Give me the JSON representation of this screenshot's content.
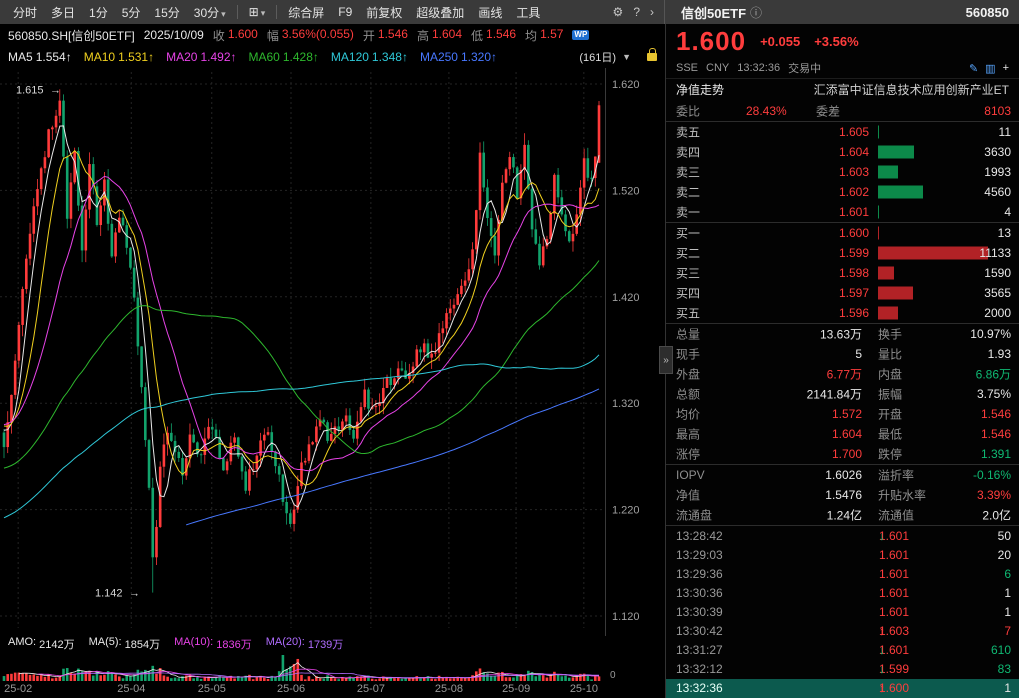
{
  "palette": {
    "red": "#ff3d3d",
    "green": "#0fb973",
    "white": "#e8e8e8"
  },
  "toolbar": {
    "tabs": [
      "分时",
      "多日",
      "1分",
      "5分",
      "15分",
      "30分"
    ],
    "tab_dropdown": "▾",
    "chart_type_icon": "⊞",
    "menu": [
      "综合屏",
      "F9",
      "前复权",
      "超级叠加",
      "画线",
      "工具"
    ],
    "gear_icon": "⚙",
    "help_icon": "?",
    "more_icon": "›"
  },
  "quote_header": {
    "name": "信创50ETF",
    "info_icon": "ⓘ",
    "code": "560850"
  },
  "info_row": {
    "symbol": "560850.SH[信创50ETF]",
    "date": "2025/10/09",
    "fields": [
      {
        "label": "收",
        "value": "1.600",
        "color": "red"
      },
      {
        "label": "幅",
        "value": "3.56%(0.055)",
        "color": "red"
      },
      {
        "label": "开",
        "value": "1.546",
        "color": "red"
      },
      {
        "label": "高",
        "value": "1.604",
        "color": "red"
      },
      {
        "label": "低",
        "value": "1.546",
        "color": "red"
      },
      {
        "label": "均",
        "value": "1.57",
        "color": "red"
      }
    ],
    "badge": "WP"
  },
  "ma_row": {
    "items": [
      {
        "label": "MA5",
        "value": "1.554↑",
        "color": "#e8e8e8"
      },
      {
        "label": "MA10",
        "value": "1.531↑",
        "color": "#f0d01f"
      },
      {
        "label": "MA20",
        "value": "1.492↑",
        "color": "#e743e7"
      },
      {
        "label": "MA60",
        "value": "1.428↑",
        "color": "#2eb82e"
      },
      {
        "label": "MA120",
        "value": "1.348↑",
        "color": "#2fc8d8"
      },
      {
        "label": "MA250",
        "value": "1.320↑",
        "color": "#4878ff"
      }
    ],
    "period": "(161日)",
    "period_arrow": "▼"
  },
  "price_panel": {
    "last": "1.600",
    "change": "+0.055",
    "pct": "+3.56%",
    "exchange": "SSE",
    "currency": "CNY",
    "time": "13:32:36",
    "status": "交易中",
    "edit_icon": "✎",
    "kline_icon": "▥",
    "plus_icon": "+"
  },
  "fund_row": {
    "label": "净值走势",
    "name": "汇添富中证信息技术应用创新产业ET"
  },
  "weibi": {
    "label1": "委比",
    "value1": "28.43%",
    "label2": "委差",
    "value2": "8103"
  },
  "depth": {
    "max_size": 11133,
    "asks": [
      {
        "label": "卖五",
        "price": "1.605",
        "vol": "11",
        "size": 11
      },
      {
        "label": "卖四",
        "price": "1.604",
        "vol": "3630",
        "size": 3630
      },
      {
        "label": "卖三",
        "price": "1.603",
        "vol": "1993",
        "size": 1993
      },
      {
        "label": "卖二",
        "price": "1.602",
        "vol": "4560",
        "size": 4560
      },
      {
        "label": "卖一",
        "price": "1.601",
        "vol": "4",
        "size": 4
      }
    ],
    "bids": [
      {
        "label": "买一",
        "price": "1.600",
        "vol": "13",
        "size": 13
      },
      {
        "label": "买二",
        "price": "1.599",
        "vol": "11133",
        "size": 11133
      },
      {
        "label": "买三",
        "price": "1.598",
        "vol": "1590",
        "size": 1590
      },
      {
        "label": "买四",
        "price": "1.597",
        "vol": "3565",
        "size": 3565
      },
      {
        "label": "买五",
        "price": "1.596",
        "vol": "2000",
        "size": 2000
      }
    ],
    "ask_bar_color": "#0c8a4a",
    "bid_bar_color": "#b22226"
  },
  "stats": [
    {
      "l1": "总量",
      "v1": "13.63万",
      "c1": "white",
      "l2": "换手",
      "v2": "10.97%",
      "c2": "white"
    },
    {
      "l1": "现手",
      "v1": "5",
      "c1": "white",
      "l2": "量比",
      "v2": "1.93",
      "c2": "white"
    },
    {
      "l1": "外盘",
      "v1": "6.77万",
      "c1": "red",
      "l2": "内盘",
      "v2": "6.86万",
      "c2": "green"
    },
    {
      "l1": "总额",
      "v1": "2141.84万",
      "c1": "white",
      "l2": "振幅",
      "v2": "3.75%",
      "c2": "white"
    },
    {
      "l1": "均价",
      "v1": "1.572",
      "c1": "red",
      "l2": "开盘",
      "v2": "1.546",
      "c2": "red"
    },
    {
      "l1": "最高",
      "v1": "1.604",
      "c1": "red",
      "l2": "最低",
      "v2": "1.546",
      "c2": "red"
    },
    {
      "l1": "涨停",
      "v1": "1.700",
      "c1": "red",
      "l2": "跌停",
      "v2": "1.391",
      "c2": "green"
    }
  ],
  "iopv": [
    {
      "l1": "IOPV",
      "v1": "1.6026",
      "c1": "white",
      "l2": "溢折率",
      "v2": "-0.16%",
      "c2": "green"
    },
    {
      "l1": "净值",
      "v1": "1.5476",
      "c1": "white",
      "l2": "升贴水率",
      "v2": "3.39%",
      "c2": "red"
    },
    {
      "l1": "流通盘",
      "v1": "1.24亿",
      "c1": "white",
      "l2": "流通值",
      "v2": "2.0亿",
      "c2": "white"
    }
  ],
  "ticks": [
    {
      "time": "13:28:42",
      "price": "1.601",
      "arrow": "↓",
      "dir": "down",
      "vol": "50",
      "vol_color": "white",
      "highlight": false
    },
    {
      "time": "13:29:03",
      "price": "1.601",
      "arrow": "",
      "dir": "",
      "vol": "20",
      "vol_color": "white",
      "highlight": false
    },
    {
      "time": "13:29:36",
      "price": "1.601",
      "arrow": "",
      "dir": "",
      "vol": "6",
      "vol_color": "green",
      "highlight": false
    },
    {
      "time": "13:30:36",
      "price": "1.601",
      "arrow": "",
      "dir": "",
      "vol": "1",
      "vol_color": "white",
      "highlight": false
    },
    {
      "time": "13:30:39",
      "price": "1.601",
      "arrow": "",
      "dir": "",
      "vol": "1",
      "vol_color": "white",
      "highlight": false
    },
    {
      "time": "13:30:42",
      "price": "1.603",
      "arrow": "↑",
      "dir": "up",
      "vol": "7",
      "vol_color": "red",
      "highlight": false
    },
    {
      "time": "13:31:27",
      "price": "1.601",
      "arrow": "↓",
      "dir": "down",
      "vol": "610",
      "vol_color": "green",
      "highlight": false
    },
    {
      "time": "13:32:12",
      "price": "1.599",
      "arrow": "↓",
      "dir": "down",
      "vol": "83",
      "vol_color": "green",
      "highlight": false
    },
    {
      "time": "13:32:36",
      "price": "1.600",
      "arrow": "↑",
      "dir": "up",
      "vol": "1",
      "vol_color": "white",
      "highlight": true
    }
  ],
  "chart": {
    "y_ticks": [
      "1.620",
      "1.520",
      "1.420",
      "1.320",
      "1.220",
      "1.120"
    ],
    "x_ticks": [
      {
        "label": "25-02",
        "f": 0.03
      },
      {
        "label": "25-04",
        "f": 0.217
      },
      {
        "label": "25-05",
        "f": 0.35
      },
      {
        "label": "25-06",
        "f": 0.481
      },
      {
        "label": "25-07",
        "f": 0.613
      },
      {
        "label": "25-08",
        "f": 0.742
      },
      {
        "label": "25-09",
        "f": 0.853
      },
      {
        "label": "25-10",
        "f": 0.965
      }
    ],
    "high_annotation": "1.615",
    "low_annotation": "1.142",
    "arrow": "→",
    "zero_label": "0",
    "amo": [
      {
        "label": "AMO:",
        "value": "2142万",
        "color": "#e8e8e8"
      },
      {
        "label": "MA(5):",
        "value": "1854万",
        "color": "#e8e8e8"
      },
      {
        "label": "MA(10):",
        "value": "1836万",
        "color": "#e743e7"
      },
      {
        "label": "MA(20):",
        "value": "1739万",
        "color": "#b06cff"
      }
    ],
    "colors": {
      "up": "#ff3b3b",
      "down": "#12a36c",
      "ma5": "#e8e8e8",
      "ma10": "#f0d01f",
      "ma20": "#e743e7",
      "ma60": "#2eb82e",
      "ma120": "#2fc8d8",
      "ma250": "#4878ff"
    },
    "anchors": [
      [
        0,
        1.28
      ],
      [
        3,
        1.36
      ],
      [
        6,
        1.46
      ],
      [
        9,
        1.52
      ],
      [
        12,
        1.57
      ],
      [
        15,
        1.6
      ],
      [
        17,
        1.5
      ],
      [
        19,
        1.565
      ],
      [
        21,
        1.46
      ],
      [
        23,
        1.545
      ],
      [
        25,
        1.49
      ],
      [
        27,
        1.53
      ],
      [
        29,
        1.45
      ],
      [
        31,
        1.5
      ],
      [
        33,
        1.47
      ],
      [
        35,
        1.42
      ],
      [
        37,
        1.34
      ],
      [
        39,
        1.24
      ],
      [
        40,
        1.17
      ],
      [
        41,
        1.2
      ],
      [
        42,
        1.26
      ],
      [
        44,
        1.3
      ],
      [
        46,
        1.28
      ],
      [
        48,
        1.25
      ],
      [
        50,
        1.295
      ],
      [
        53,
        1.27
      ],
      [
        56,
        1.3
      ],
      [
        59,
        1.26
      ],
      [
        62,
        1.285
      ],
      [
        65,
        1.245
      ],
      [
        68,
        1.27
      ],
      [
        71,
        1.295
      ],
      [
        74,
        1.25
      ],
      [
        77,
        1.205
      ],
      [
        79,
        1.245
      ],
      [
        82,
        1.28
      ],
      [
        85,
        1.3
      ],
      [
        88,
        1.285
      ],
      [
        91,
        1.31
      ],
      [
        94,
        1.29
      ],
      [
        97,
        1.325
      ],
      [
        100,
        1.31
      ],
      [
        103,
        1.34
      ],
      [
        106,
        1.355
      ],
      [
        109,
        1.345
      ],
      [
        112,
        1.375
      ],
      [
        115,
        1.365
      ],
      [
        118,
        1.395
      ],
      [
        121,
        1.415
      ],
      [
        124,
        1.43
      ],
      [
        126,
        1.465
      ],
      [
        128,
        1.55
      ],
      [
        130,
        1.5
      ],
      [
        132,
        1.46
      ],
      [
        134,
        1.52
      ],
      [
        136,
        1.55
      ],
      [
        138,
        1.52
      ],
      [
        140,
        1.565
      ],
      [
        142,
        1.49
      ],
      [
        144,
        1.45
      ],
      [
        146,
        1.48
      ],
      [
        148,
        1.53
      ],
      [
        150,
        1.5
      ],
      [
        152,
        1.465
      ],
      [
        154,
        1.505
      ],
      [
        156,
        1.55
      ],
      [
        158,
        1.525
      ],
      [
        159,
        1.545
      ],
      [
        160,
        1.6
      ]
    ]
  },
  "misc": {
    "collapse_icon": "»"
  }
}
